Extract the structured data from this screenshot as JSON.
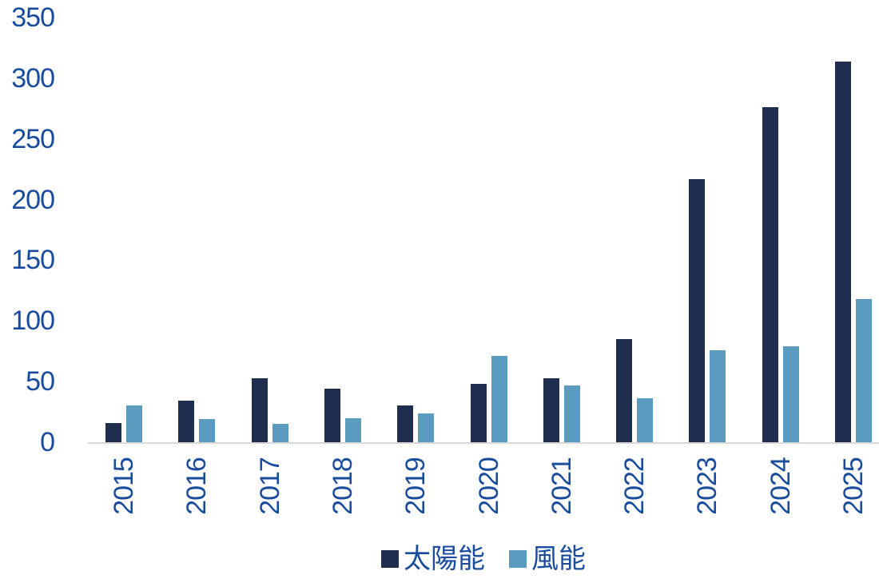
{
  "chart_data": {
    "type": "bar",
    "title": "",
    "categories": [
      "2015",
      "2016",
      "2017",
      "2018",
      "2019",
      "2020",
      "2021",
      "2022",
      "2023",
      "2024",
      "2025"
    ],
    "series": [
      {
        "name": "太陽能",
        "color": "#1F2E4F",
        "values": [
          16,
          34,
          53,
          44,
          30,
          48,
          53,
          85,
          217,
          276,
          314
        ]
      },
      {
        "name": "風能",
        "color": "#5C9BC0",
        "values": [
          30,
          19,
          15,
          20,
          24,
          71,
          47,
          36,
          76,
          79,
          118
        ]
      }
    ],
    "xlabel": "",
    "ylabel": "",
    "ylim": [
      0,
      350
    ],
    "yticks": [
      0,
      50,
      100,
      150,
      200,
      250,
      300,
      350
    ],
    "grid": false,
    "legend_position": "bottom",
    "colors": {
      "axis_label": "#1A4C9D",
      "baseline": "#D9D9D9",
      "background": "#FFFFFF"
    }
  }
}
